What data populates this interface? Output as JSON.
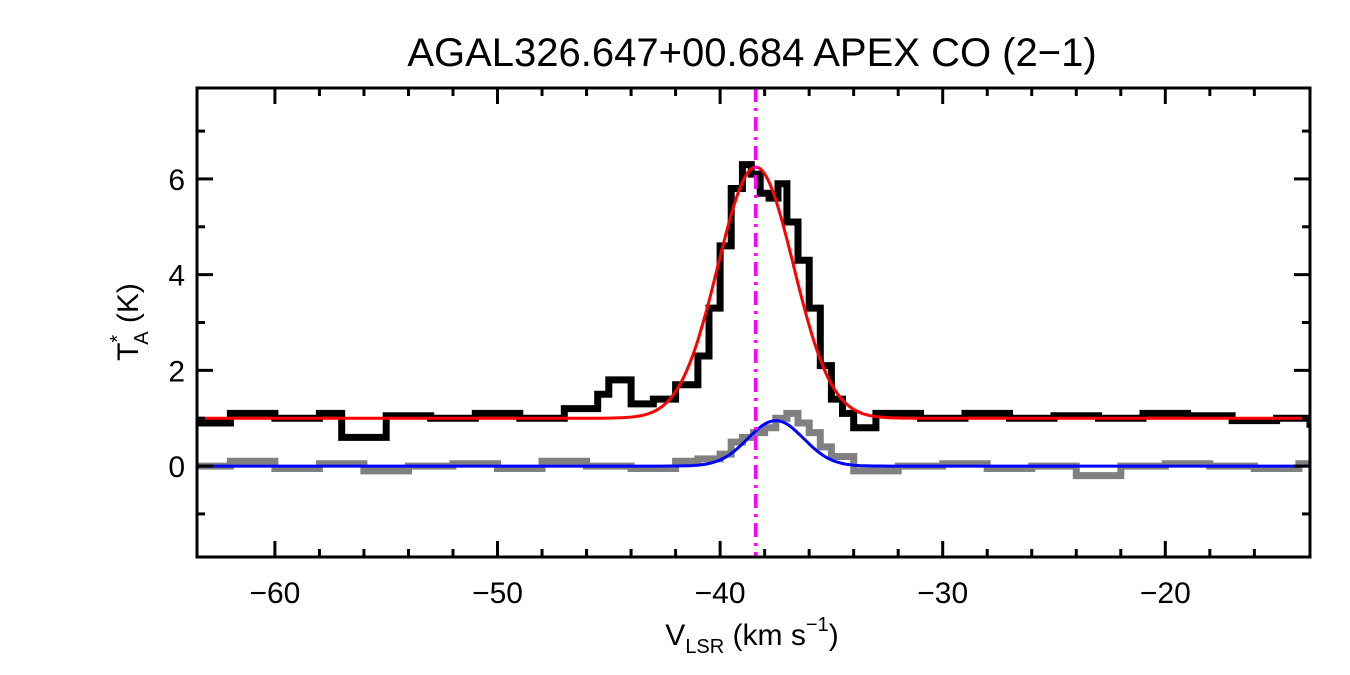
{
  "chart_data": {
    "type": "line",
    "title": "AGAL326.647+00.684  APEX CO (2−1)",
    "xlabel": {
      "main": "V",
      "sub": "LSR",
      "rest": " (km s",
      "sup": "−1",
      "end": ")"
    },
    "ylabel": {
      "main": "T",
      "sup": "*",
      "sub": "A",
      "rest": " (K)"
    },
    "xlim": [
      -63.5,
      -13.5
    ],
    "ylim": [
      -1.9,
      7.9
    ],
    "xticks": [
      -60,
      -50,
      -40,
      -30,
      -20
    ],
    "xtick_labels": [
      "−60",
      "−50",
      "−40",
      "−30",
      "−20"
    ],
    "yticks": [
      0,
      2,
      4,
      6
    ],
    "ytick_labels": [
      "0",
      "2",
      "4",
      "6"
    ],
    "vline_x": -38.4,
    "colors": {
      "spectrum": "#000000",
      "spectrum_offset": "#808080",
      "fit_red": "#ff0000",
      "fit_blue": "#0000ff",
      "vline": "#ff00ff"
    },
    "series": [
      {
        "role": "black-spectrum",
        "x": [
          -63.5,
          -62,
          -60,
          -58,
          -57,
          -55,
          -53,
          -51,
          -49,
          -47,
          -45.5,
          -45,
          -44,
          -43,
          -42,
          -41,
          -40.5,
          -40,
          -39.5,
          -39,
          -38.6,
          -38.2,
          -37.8,
          -37.4,
          -37,
          -36.5,
          -36,
          -35.5,
          -35,
          -34.5,
          -34,
          -33,
          -31,
          -29,
          -27,
          -25,
          -23,
          -21,
          -19,
          -17,
          -15,
          -13.5
        ],
        "y": [
          0.9,
          1.1,
          1.0,
          1.1,
          0.6,
          1.05,
          1.0,
          1.1,
          1.0,
          1.2,
          1.5,
          1.8,
          1.3,
          1.4,
          1.7,
          2.3,
          3.3,
          4.6,
          5.8,
          6.3,
          6.1,
          5.7,
          5.6,
          5.9,
          5.1,
          4.3,
          3.3,
          2.1,
          1.4,
          1.1,
          0.8,
          1.1,
          1.0,
          1.1,
          1.0,
          1.05,
          1.0,
          1.1,
          1.05,
          0.95,
          1.0,
          0.8
        ]
      },
      {
        "role": "gray-spectrum",
        "x": [
          -63.5,
          -62,
          -60,
          -58,
          -56,
          -54,
          -52,
          -50,
          -48,
          -46,
          -44,
          -42,
          -41,
          -40,
          -39.5,
          -39,
          -38.5,
          -38,
          -37.5,
          -37,
          -36.5,
          -36,
          -35.5,
          -35,
          -34,
          -32,
          -30,
          -28,
          -26,
          -24,
          -22,
          -20,
          -18,
          -16,
          -14,
          -13.5
        ],
        "y": [
          0.0,
          0.1,
          -0.05,
          0.05,
          -0.1,
          0.0,
          0.05,
          -0.05,
          0.1,
          0.0,
          -0.05,
          0.1,
          0.15,
          0.25,
          0.5,
          0.6,
          0.7,
          0.8,
          1.0,
          1.1,
          0.9,
          0.7,
          0.4,
          0.2,
          -0.1,
          0.0,
          0.05,
          -0.05,
          0.0,
          -0.2,
          0.0,
          0.05,
          0.0,
          -0.05,
          0.05,
          0.0
        ]
      },
      {
        "role": "red-gaussian-fit",
        "gaussian": {
          "amplitude": 5.25,
          "center": -38.4,
          "sigma": 1.7,
          "baseline": 1.0
        }
      },
      {
        "role": "blue-gaussian-fit",
        "gaussian": {
          "amplitude": 0.95,
          "center": -37.5,
          "sigma": 1.25,
          "baseline": 0.0
        }
      }
    ]
  }
}
